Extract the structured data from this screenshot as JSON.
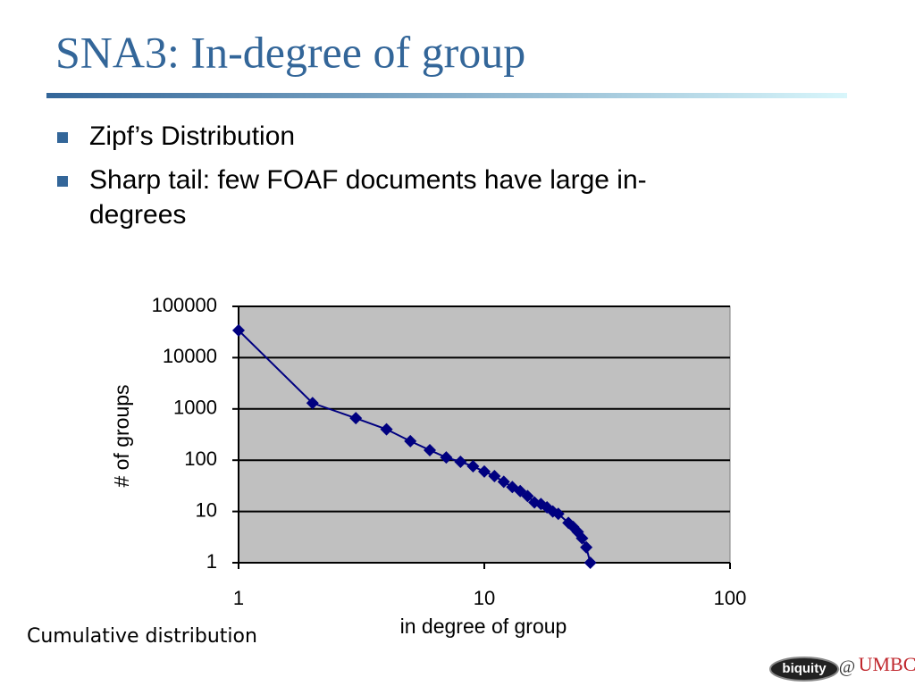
{
  "slide": {
    "title": "SNA3: In-degree of group",
    "bullets": [
      "Zipf’s Distribution",
      "Sharp tail: few FOAF documents have large in-",
      "degrees"
    ],
    "caption": "Cumulative distribution",
    "logos": [
      "biquity",
      "@",
      "UMBC"
    ]
  },
  "chart_data": {
    "type": "scatter",
    "x_label": "in degree of group",
    "y_label": "# of groups",
    "xscale": "log",
    "yscale": "log",
    "xlim": [
      1,
      100
    ],
    "ylim": [
      1,
      100000
    ],
    "xticks": [
      1,
      10,
      100
    ],
    "yticks": [
      1,
      10,
      100,
      1000,
      10000,
      100000
    ],
    "grid": true,
    "series": [
      {
        "color": "#000080",
        "x": [
          1,
          2,
          3,
          4,
          5,
          6,
          7,
          8,
          9,
          10,
          11,
          12,
          13,
          14,
          15,
          16,
          17,
          18,
          19,
          20,
          22,
          23,
          24,
          25,
          26,
          27
        ],
        "values": [
          34000,
          1300,
          660,
          400,
          235,
          157,
          113,
          93,
          76,
          60,
          49,
          38,
          30,
          25,
          20,
          15,
          14,
          12,
          10,
          9,
          6,
          5,
          4,
          3,
          2,
          1
        ]
      }
    ]
  }
}
